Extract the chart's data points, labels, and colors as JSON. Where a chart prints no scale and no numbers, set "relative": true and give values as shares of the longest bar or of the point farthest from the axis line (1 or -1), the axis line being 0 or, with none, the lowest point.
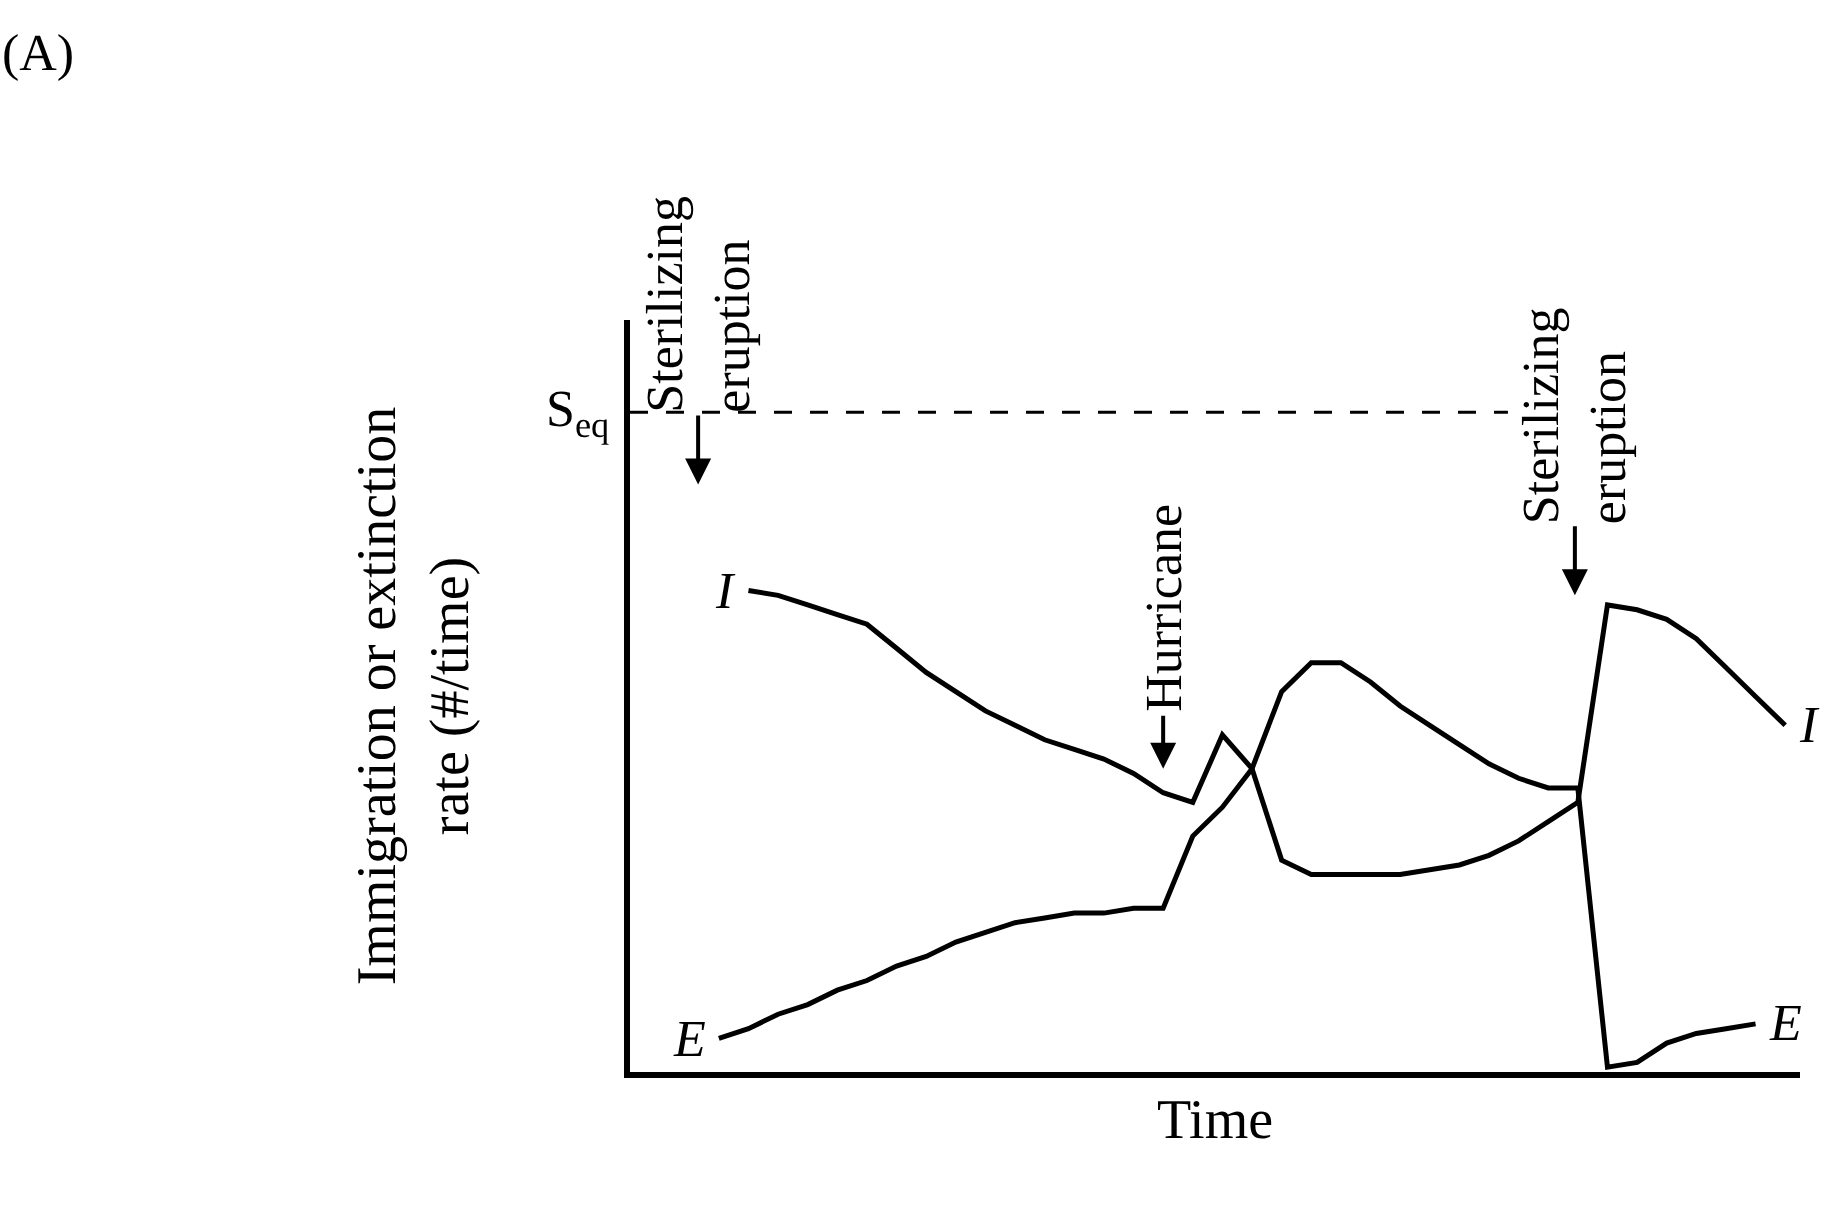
{
  "chart_data": {
    "type": "line",
    "relative": true,
    "xlabel": "Time",
    "ylabel": "Immigration or extinction rate (#/time)",
    "categories": [
      null,
      null,
      null,
      null,
      null,
      null,
      null,
      null,
      null,
      null,
      null,
      null,
      null,
      null,
      null,
      null,
      null,
      null,
      null,
      null,
      null,
      null,
      null,
      null,
      null,
      null,
      null,
      null,
      null,
      null,
      null,
      null,
      null,
      null,
      null,
      null,
      null
    ],
    "series": [
      {
        "name": "I",
        "color": "#000000",
        "values": [
          null,
          1.0,
          0.99,
          0.97,
          0.95,
          0.93,
          0.88,
          0.83,
          0.79,
          0.75,
          0.72,
          0.69,
          0.67,
          0.65,
          0.62,
          0.58,
          0.56,
          0.7,
          0.63,
          0.44,
          0.41,
          0.41,
          0.41,
          0.41,
          0.42,
          0.43,
          0.45,
          0.48,
          0.52,
          0.56,
          0.97,
          0.96,
          0.94,
          0.9,
          0.84,
          0.78,
          0.72
        ]
      },
      {
        "name": "E",
        "color": "#000000",
        "values": [
          0.07,
          0.09,
          0.12,
          0.14,
          0.17,
          0.19,
          0.22,
          0.24,
          0.27,
          0.29,
          0.31,
          0.32,
          0.33,
          0.33,
          0.34,
          0.34,
          0.49,
          0.55,
          0.63,
          0.79,
          0.85,
          0.85,
          0.81,
          0.76,
          0.72,
          0.68,
          0.64,
          0.61,
          0.59,
          0.59,
          0.01,
          0.02,
          0.06,
          0.08,
          0.09,
          0.1,
          null
        ]
      }
    ],
    "ref_lines": [
      {
        "axis": "y",
        "value": 1.37,
        "label": "S$_{eq}$",
        "color": "#000000",
        "line_style": "dashed"
      }
    ],
    "annotations": [
      "(A)",
      "Sterilizing eruption",
      "Hurricane",
      "Sterilizing eruption"
    ],
    "legend": false,
    "marker": "none",
    "line_style": "solid"
  }
}
